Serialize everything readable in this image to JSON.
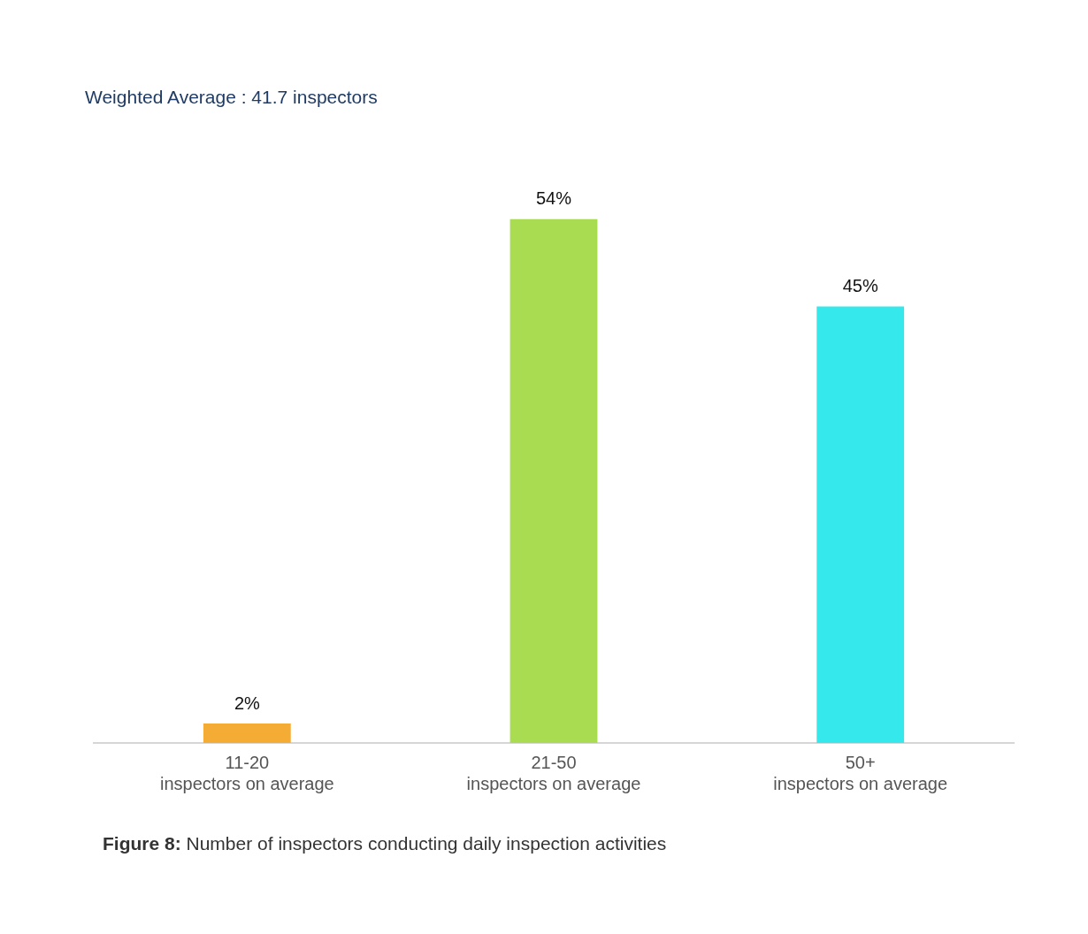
{
  "chart_data": {
    "type": "bar",
    "title": "Weighted Average : 41.7 inspectors",
    "categories": [
      "11-20\ninspectors on average",
      "21-50\ninspectors on average",
      "50+\ninspectors on average"
    ],
    "values": [
      2,
      54,
      45
    ],
    "colors": [
      "#f5ac34",
      "#a9dc50",
      "#34e8eb"
    ],
    "value_labels": [
      "2%",
      "54%",
      "45%"
    ],
    "annotations": [
      "Figure 8: Number of inspectors conducting daily inspection activities"
    ]
  }
}
